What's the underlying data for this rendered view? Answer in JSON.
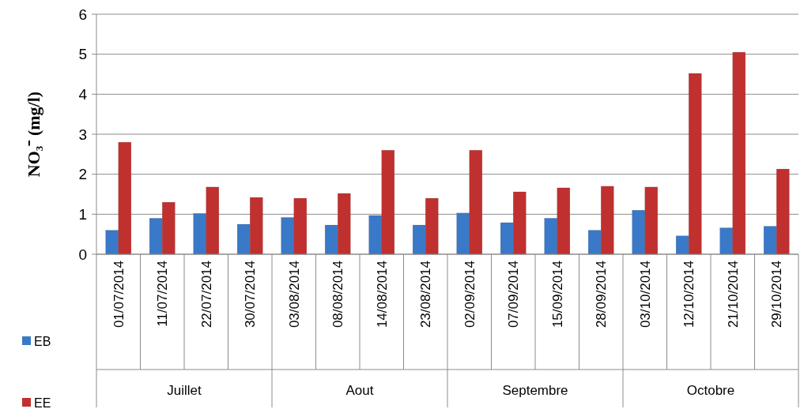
{
  "chart_data": {
    "type": "bar",
    "ylabel": "NO₃⁻ (mg/l)",
    "categories": [
      "01/07/2014",
      "11/07/2014",
      "22/07/2014",
      "30/07/2014",
      "03/08/2014",
      "08/08/2014",
      "14/08/2014",
      "23/08/2014",
      "02/09/2014",
      "07/09/2014",
      "15/09/2014",
      "28/09/2014",
      "03/10/2014",
      "12/10/2014",
      "21/10/2014",
      "29/10/2014"
    ],
    "series": [
      {
        "name": "EB",
        "color": "#3a78c8",
        "values": [
          0.6,
          0.9,
          1.02,
          0.75,
          0.92,
          0.73,
          0.97,
          0.73,
          1.03,
          0.79,
          0.9,
          0.6,
          1.1,
          0.46,
          0.66,
          0.7
        ]
      },
      {
        "name": "EE",
        "color": "#c0302f",
        "values": [
          2.8,
          1.3,
          1.68,
          1.42,
          1.4,
          1.52,
          2.6,
          1.4,
          2.6,
          1.56,
          1.66,
          1.7,
          1.68,
          4.52,
          5.05,
          2.13
        ]
      }
    ],
    "ylim": [
      0,
      6
    ],
    "yticks": [
      0,
      1,
      2,
      3,
      4,
      5,
      6
    ],
    "grid": "y",
    "legend": "left",
    "annotations": [
      "Juillet",
      "Aout",
      "Septembre",
      "Octobre"
    ]
  }
}
